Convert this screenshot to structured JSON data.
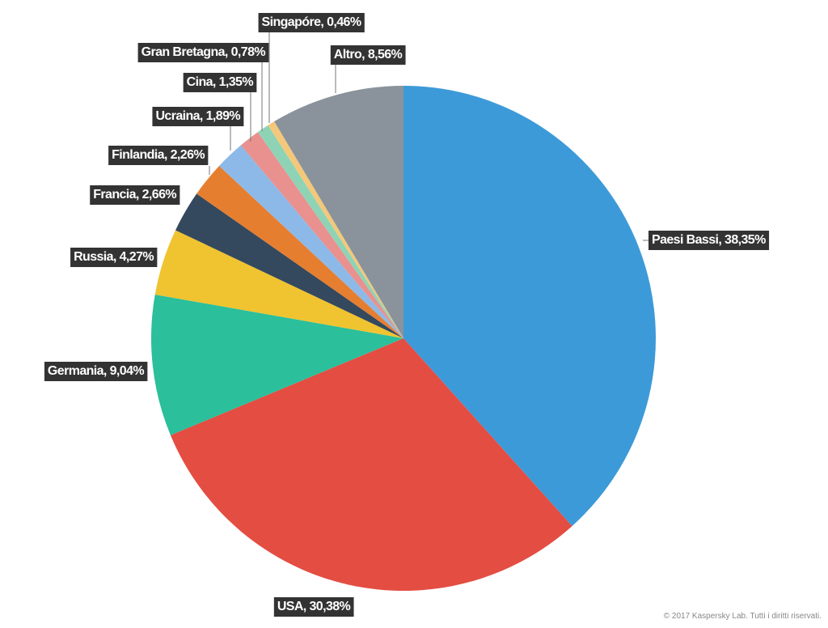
{
  "chart_data": {
    "type": "pie",
    "values": [
      38.35,
      30.38,
      9.04,
      4.27,
      2.66,
      2.26,
      1.89,
      1.35,
      0.78,
      0.46,
      8.56
    ],
    "value_labels": [
      "Paesi Bassi, 38,35%",
      "USA, 30,38%",
      "Germania, 9,04%",
      "Russia, 4,27%",
      "Francia, 2,66%",
      "Finlandia, 2,26%",
      "Ucraina, 1,89%",
      "Cina, 1,35%",
      "Gran Bretagna, 0,78%",
      "Singapóre, 0,46%",
      "Altro, 8,56%"
    ],
    "colors": [
      "#3d9ad9",
      "#e44d42",
      "#2bbf9b",
      "#f0c330",
      "#34495e",
      "#e67e30",
      "#8db9e8",
      "#e8918f",
      "#8fd3b6",
      "#f4c87a",
      "#8a939b"
    ],
    "credit": "© 2017 Kaspersky Lab. Tutti i diritti riservati."
  }
}
